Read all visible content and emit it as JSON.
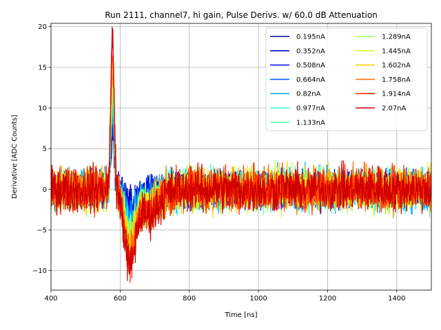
{
  "chart_data": {
    "type": "line",
    "title": "Run 2111, channel7, hi gain, Pulse Derivs. w/ 60.0 dB Attenuation",
    "xlabel": "Time [ns]",
    "ylabel": "Derivative [ADC Counts]",
    "xlim": [
      400,
      1500
    ],
    "ylim": [
      -12.4,
      20.4
    ],
    "xticks": [
      400,
      600,
      800,
      1000,
      1200,
      1400
    ],
    "yticks": [
      -10,
      -5,
      0,
      5,
      10,
      15,
      20
    ],
    "xtick_labels": [
      "400",
      "600",
      "800",
      "1000",
      "1200",
      "1400"
    ],
    "ytick_labels": [
      "−10",
      "−5",
      "0",
      "5",
      "10",
      "15",
      "20"
    ],
    "grid": true,
    "legend_position": "top-right",
    "legend_columns": 2,
    "pulse": {
      "peak_time": 578,
      "trough_time": 628
    },
    "series": [
      {
        "name": "0.195nA",
        "color": "#00008f",
        "peak": 6.5,
        "trough": -1.5,
        "noise": 2.2
      },
      {
        "name": "0.352nA",
        "color": "#0000d8",
        "peak": 7.5,
        "trough": -2.0,
        "noise": 2.3
      },
      {
        "name": "0.508nA",
        "color": "#0018ff",
        "peak": 8.5,
        "trough": -2.6,
        "noise": 2.4
      },
      {
        "name": "0.664nA",
        "color": "#0060ff",
        "peak": 9.5,
        "trough": -3.2,
        "noise": 2.5
      },
      {
        "name": "0.82nA",
        "color": "#00b0ff",
        "peak": 10.5,
        "trough": -3.8,
        "noise": 2.6
      },
      {
        "name": "0.977nA",
        "color": "#28ffd7",
        "peak": 11.0,
        "trough": -4.4,
        "noise": 2.6
      },
      {
        "name": "1.133nA",
        "color": "#58ff9e",
        "peak": 12.0,
        "trough": -5.0,
        "noise": 2.7
      },
      {
        "name": "1.289nA",
        "color": "#a0ff58",
        "peak": 13.0,
        "trough": -5.5,
        "noise": 2.7
      },
      {
        "name": "1.445nA",
        "color": "#d7ff20",
        "peak": 14.0,
        "trough": -6.0,
        "noise": 2.8
      },
      {
        "name": "1.602nA",
        "color": "#ffd000",
        "peak": 15.0,
        "trough": -6.5,
        "noise": 2.8
      },
      {
        "name": "1.758nA",
        "color": "#ff7000",
        "peak": 16.0,
        "trough": -7.2,
        "noise": 2.9
      },
      {
        "name": "1.914nA",
        "color": "#ff2800",
        "peak": 17.5,
        "trough": -8.0,
        "noise": 2.9
      },
      {
        "name": "2.07nA",
        "color": "#d00000",
        "peak": 18.8,
        "trough": -9.0,
        "noise": 3.0
      }
    ]
  }
}
